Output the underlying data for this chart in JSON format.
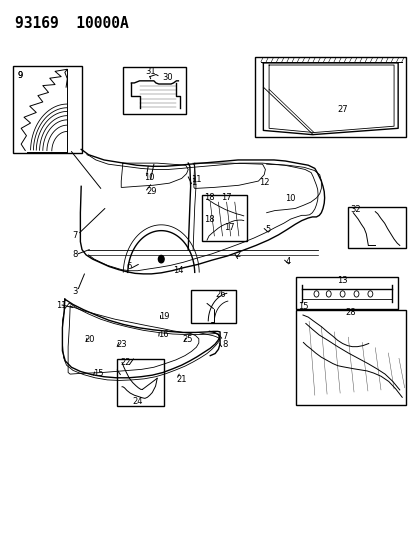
{
  "title": "93169  10000A",
  "bg_color": "#ffffff",
  "line_color": "#000000",
  "fig_width": 4.14,
  "fig_height": 5.33,
  "dpi": 100
}
